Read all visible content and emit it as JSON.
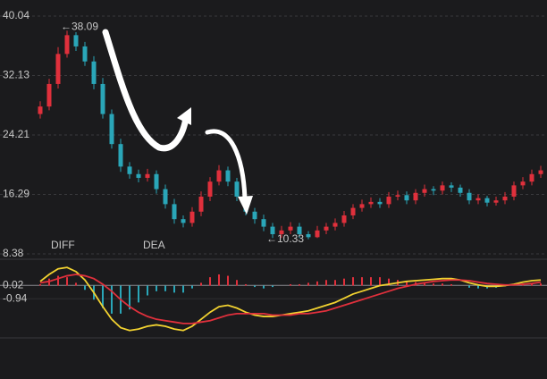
{
  "chart_data": [
    {
      "type": "candlestick",
      "open": [
        27,
        28,
        31,
        35,
        37.5,
        36,
        34,
        31,
        27,
        23,
        20,
        19,
        18.5,
        19,
        17,
        15,
        13,
        12.5,
        14,
        16,
        18,
        19.5,
        18,
        16,
        14,
        13,
        12,
        11,
        11.5,
        12,
        11,
        10.6,
        11.5,
        12,
        12.5,
        13.5,
        14.5,
        15,
        15.3,
        15,
        16,
        16.2,
        15.5,
        16.5,
        17,
        16.8,
        17.5,
        17.2,
        16.5,
        15.5,
        15.8,
        15.2,
        15.5,
        16,
        17.5,
        18,
        19
      ],
      "high": [
        28.7,
        31.7,
        35.9,
        38.09,
        37.9,
        36.6,
        34.7,
        31.8,
        27.6,
        23.7,
        20.6,
        19.6,
        19.7,
        19.5,
        17.6,
        15.7,
        13.5,
        14.6,
        16.7,
        18.6,
        20.2,
        20,
        18.5,
        16.6,
        14.5,
        13.6,
        12.5,
        12.1,
        12.6,
        12.5,
        11.4,
        12.1,
        12.5,
        13.1,
        14.1,
        15,
        15.6,
        15.9,
        15.8,
        16.6,
        16.8,
        16.7,
        17,
        17.6,
        17.4,
        18,
        17.9,
        17.6,
        17,
        16.3,
        16.1,
        16,
        16.6,
        18,
        18.6,
        19.6,
        20.1
      ],
      "low": [
        26.4,
        27.5,
        30.4,
        34.5,
        35.4,
        33.4,
        30.3,
        26.4,
        22.4,
        19.3,
        18.4,
        17.9,
        18,
        16.4,
        14.4,
        12.4,
        11.9,
        12,
        13.4,
        15.4,
        17.5,
        17.4,
        15.4,
        13.5,
        12.4,
        11.4,
        10.5,
        10.5,
        11,
        10.5,
        10.33,
        10.5,
        11,
        11.5,
        12,
        13,
        14,
        14.5,
        14.5,
        14.5,
        15.5,
        15,
        15,
        16,
        16.2,
        16.3,
        16.6,
        16,
        15,
        15,
        14.7,
        14.8,
        15,
        15.5,
        17,
        17.5,
        18.5
      ],
      "close": [
        28,
        31,
        35,
        37.5,
        36,
        34,
        31,
        27,
        23,
        20,
        19,
        18.5,
        19,
        17,
        15,
        13,
        12.5,
        14,
        16,
        18,
        19.5,
        18,
        16,
        14,
        13,
        12,
        11,
        11.5,
        12,
        11,
        10.6,
        11.5,
        12,
        12.5,
        13.5,
        14.5,
        15,
        15.3,
        15,
        16,
        16.2,
        15.5,
        16.5,
        17,
        16.8,
        17.5,
        17.2,
        16.5,
        15.5,
        15.8,
        15.2,
        15.5,
        16,
        17.5,
        18,
        19,
        19.5
      ],
      "up_color": "#e0303c",
      "down_color": "#2aa6b8",
      "ylim": [
        8.38,
        40.04
      ],
      "yticks": [
        40.04,
        32.13,
        24.21,
        16.29,
        8.38
      ],
      "grid": true,
      "annotations": [
        {
          "label": "←38.09",
          "value": 38.09
        },
        {
          "label": "←10.33",
          "value": 10.33
        }
      ]
    },
    {
      "type": "macd",
      "series": [
        {
          "name": "DIFF",
          "color": "#f2d230",
          "values": [
            0.3,
            0.8,
            1.2,
            1.3,
            1.0,
            0.4,
            -0.5,
            -1.5,
            -2.4,
            -3.0,
            -3.2,
            -3.1,
            -2.9,
            -2.8,
            -2.9,
            -3.1,
            -3.2,
            -2.9,
            -2.4,
            -1.9,
            -1.5,
            -1.4,
            -1.6,
            -1.9,
            -2.1,
            -2.2,
            -2.2,
            -2.1,
            -2.0,
            -1.9,
            -1.8,
            -1.6,
            -1.4,
            -1.2,
            -0.9,
            -0.6,
            -0.4,
            -0.2,
            0,
            0.1,
            0.2,
            0.3,
            0.35,
            0.4,
            0.45,
            0.5,
            0.5,
            0.4,
            0.2,
            0.05,
            -0.05,
            -0.05,
            0,
            0.1,
            0.25,
            0.35,
            0.4
          ]
        },
        {
          "name": "DEA",
          "color": "#e0303c",
          "values": [
            0.2,
            0.3,
            0.5,
            0.7,
            0.8,
            0.7,
            0.5,
            0.1,
            -0.4,
            -1.0,
            -1.5,
            -1.9,
            -2.2,
            -2.4,
            -2.5,
            -2.6,
            -2.7,
            -2.7,
            -2.6,
            -2.5,
            -2.3,
            -2.1,
            -2.0,
            -2.0,
            -2.0,
            -2.0,
            -2.1,
            -2.1,
            -2.1,
            -2.0,
            -2.0,
            -1.9,
            -1.8,
            -1.6,
            -1.4,
            -1.2,
            -1.0,
            -0.8,
            -0.6,
            -0.4,
            -0.2,
            -0.05,
            0.1,
            0.2,
            0.3,
            0.35,
            0.4,
            0.4,
            0.35,
            0.25,
            0.15,
            0.1,
            0.05,
            0.05,
            0.1,
            0.15,
            0.25
          ]
        }
      ],
      "histogram": [
        0.1,
        0.5,
        0.7,
        0.6,
        0.2,
        -0.3,
        -1.0,
        -1.6,
        -2.0,
        -2.0,
        -1.7,
        -1.2,
        -0.7,
        -0.4,
        -0.4,
        -0.5,
        -0.5,
        -0.2,
        0.2,
        0.6,
        0.8,
        0.7,
        0.4,
        0.1,
        -0.1,
        -0.2,
        -0.1,
        0,
        0.1,
        0.1,
        0.2,
        0.3,
        0.4,
        0.4,
        0.5,
        0.6,
        0.6,
        0.6,
        0.6,
        0.5,
        0.4,
        0.35,
        0.25,
        0.2,
        0.15,
        0.15,
        0.1,
        0,
        -0.15,
        -0.2,
        -0.2,
        -0.15,
        -0.05,
        0.05,
        0.15,
        0.2,
        0.15
      ],
      "ylim": [
        -3.6,
        1.5
      ],
      "yticks": [
        0.02,
        -0.94
      ]
    }
  ]
}
